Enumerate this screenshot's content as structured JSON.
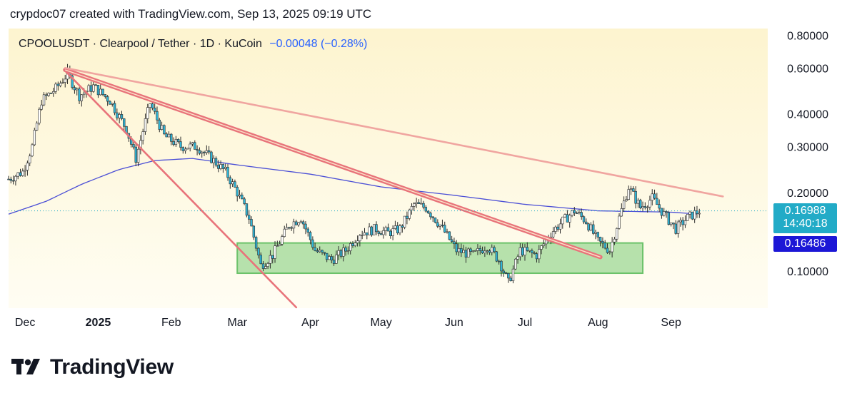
{
  "header": {
    "text": "crypdoc07 created with TradingView.com, Sep 13, 2025 09:19 UTC"
  },
  "legend": {
    "symbol": "CPOOLUSDT · Clearpool / Tether · 1D · KuCoin",
    "change": "−0.00048 (−0.28%)"
  },
  "colors": {
    "background_top": "#fdf4cf",
    "background_bottom": "#fffdf3",
    "candle_up": "#ffffff",
    "candle_down": "#2fb6d8",
    "candle_outline": "#2b2b2b",
    "moving_average": "#4b4fd6",
    "trendline_red": "#e8737a",
    "trendline_pink": "#f0a5a0",
    "support_zone": "#a9dca0",
    "price_label": "#22abc7",
    "ma_label": "#1c17d6"
  },
  "price_labels": {
    "last_price": "0.16988",
    "countdown": "14:40:18",
    "ma_value": "0.16486"
  },
  "branding": {
    "logo_text": "TradingView",
    "logo_icon": "tradingview-logo-icon"
  },
  "chart_data": {
    "type": "candlestick",
    "y_scale": "log",
    "ylim": [
      0.072,
      0.85
    ],
    "xlim": [
      "2024-11-24",
      "2025-10-12"
    ],
    "y_ticks": [
      {
        "value": 0.8,
        "label": "0.80000"
      },
      {
        "value": 0.6,
        "label": "0.60000"
      },
      {
        "value": 0.4,
        "label": "0.40000"
      },
      {
        "value": 0.3,
        "label": "0.30000"
      },
      {
        "value": 0.2,
        "label": "0.20000"
      },
      {
        "value": 0.1,
        "label": "0.10000"
      }
    ],
    "x_ticks": [
      {
        "date": "2024-12-01",
        "label": "Dec",
        "bold": false
      },
      {
        "date": "2025-01-01",
        "label": "2025",
        "bold": true
      },
      {
        "date": "2025-02-01",
        "label": "Feb",
        "bold": false
      },
      {
        "date": "2025-03-01",
        "label": "Mar",
        "bold": false
      },
      {
        "date": "2025-04-01",
        "label": "Apr",
        "bold": false
      },
      {
        "date": "2025-05-01",
        "label": "May",
        "bold": false
      },
      {
        "date": "2025-06-01",
        "label": "Jun",
        "bold": false
      },
      {
        "date": "2025-07-01",
        "label": "Jul",
        "bold": false
      },
      {
        "date": "2025-08-01",
        "label": "Aug",
        "bold": false
      },
      {
        "date": "2025-09-01",
        "label": "Sep",
        "bold": false
      }
    ],
    "price_anchors": [
      [
        "2024-11-24",
        0.225
      ],
      [
        "2024-11-30",
        0.24
      ],
      [
        "2024-12-04",
        0.3
      ],
      [
        "2024-12-08",
        0.45
      ],
      [
        "2024-12-14",
        0.5
      ],
      [
        "2024-12-19",
        0.57
      ],
      [
        "2024-12-24",
        0.47
      ],
      [
        "2024-12-30",
        0.51
      ],
      [
        "2025-01-06",
        0.45
      ],
      [
        "2025-01-13",
        0.35
      ],
      [
        "2025-01-17",
        0.27
      ],
      [
        "2025-01-23",
        0.44
      ],
      [
        "2025-01-29",
        0.33
      ],
      [
        "2025-02-05",
        0.3
      ],
      [
        "2025-02-12",
        0.3
      ],
      [
        "2025-02-18",
        0.27
      ],
      [
        "2025-02-24",
        0.24
      ],
      [
        "2025-03-01",
        0.2
      ],
      [
        "2025-03-06",
        0.16
      ],
      [
        "2025-03-11",
        0.105
      ],
      [
        "2025-03-16",
        0.115
      ],
      [
        "2025-03-23",
        0.15
      ],
      [
        "2025-03-28",
        0.16
      ],
      [
        "2025-04-03",
        0.12
      ],
      [
        "2025-04-10",
        0.11
      ],
      [
        "2025-04-16",
        0.12
      ],
      [
        "2025-04-22",
        0.14
      ],
      [
        "2025-04-29",
        0.145
      ],
      [
        "2025-05-04",
        0.14
      ],
      [
        "2025-05-09",
        0.145
      ],
      [
        "2025-05-15",
        0.18
      ],
      [
        "2025-05-20",
        0.175
      ],
      [
        "2025-05-26",
        0.15
      ],
      [
        "2025-06-02",
        0.12
      ],
      [
        "2025-06-09",
        0.115
      ],
      [
        "2025-06-15",
        0.125
      ],
      [
        "2025-06-20",
        0.11
      ],
      [
        "2025-06-24",
        0.09
      ],
      [
        "2025-06-29",
        0.12
      ],
      [
        "2025-07-06",
        0.115
      ],
      [
        "2025-07-12",
        0.14
      ],
      [
        "2025-07-17",
        0.155
      ],
      [
        "2025-07-22",
        0.17
      ],
      [
        "2025-07-27",
        0.155
      ],
      [
        "2025-08-01",
        0.13
      ],
      [
        "2025-08-06",
        0.12
      ],
      [
        "2025-08-10",
        0.16
      ],
      [
        "2025-08-14",
        0.21
      ],
      [
        "2025-08-19",
        0.175
      ],
      [
        "2025-08-24",
        0.19
      ],
      [
        "2025-08-29",
        0.165
      ],
      [
        "2025-09-03",
        0.145
      ],
      [
        "2025-09-08",
        0.16
      ],
      [
        "2025-09-13",
        0.17
      ]
    ],
    "moving_average_anchors": [
      [
        "2024-11-24",
        0.165
      ],
      [
        "2024-12-10",
        0.185
      ],
      [
        "2024-12-25",
        0.215
      ],
      [
        "2025-01-10",
        0.245
      ],
      [
        "2025-01-25",
        0.265
      ],
      [
        "2025-02-10",
        0.27
      ],
      [
        "2025-03-01",
        0.255
      ],
      [
        "2025-04-01",
        0.235
      ],
      [
        "2025-05-01",
        0.21
      ],
      [
        "2025-06-01",
        0.195
      ],
      [
        "2025-07-01",
        0.18
      ],
      [
        "2025-08-01",
        0.17
      ],
      [
        "2025-09-01",
        0.168
      ],
      [
        "2025-09-13",
        0.165
      ]
    ],
    "last_price": 0.16988,
    "ma_last": 0.16486,
    "support_zone": {
      "x": [
        "2025-03-01",
        "2025-08-20"
      ],
      "y": [
        0.098,
        0.128
      ]
    },
    "trendlines": [
      {
        "from": [
          "2024-12-18",
          0.585
        ],
        "to": [
          "2025-03-26",
          0.0725
        ],
        "color": "red",
        "style": "solid"
      },
      {
        "from": [
          "2024-12-18",
          0.59
        ],
        "to": [
          "2025-08-02",
          0.113
        ],
        "color": "red",
        "style": "double"
      },
      {
        "from": [
          "2024-12-18",
          0.6
        ],
        "to": [
          "2025-09-23",
          0.193
        ],
        "color": "pink",
        "style": "solid"
      }
    ]
  }
}
